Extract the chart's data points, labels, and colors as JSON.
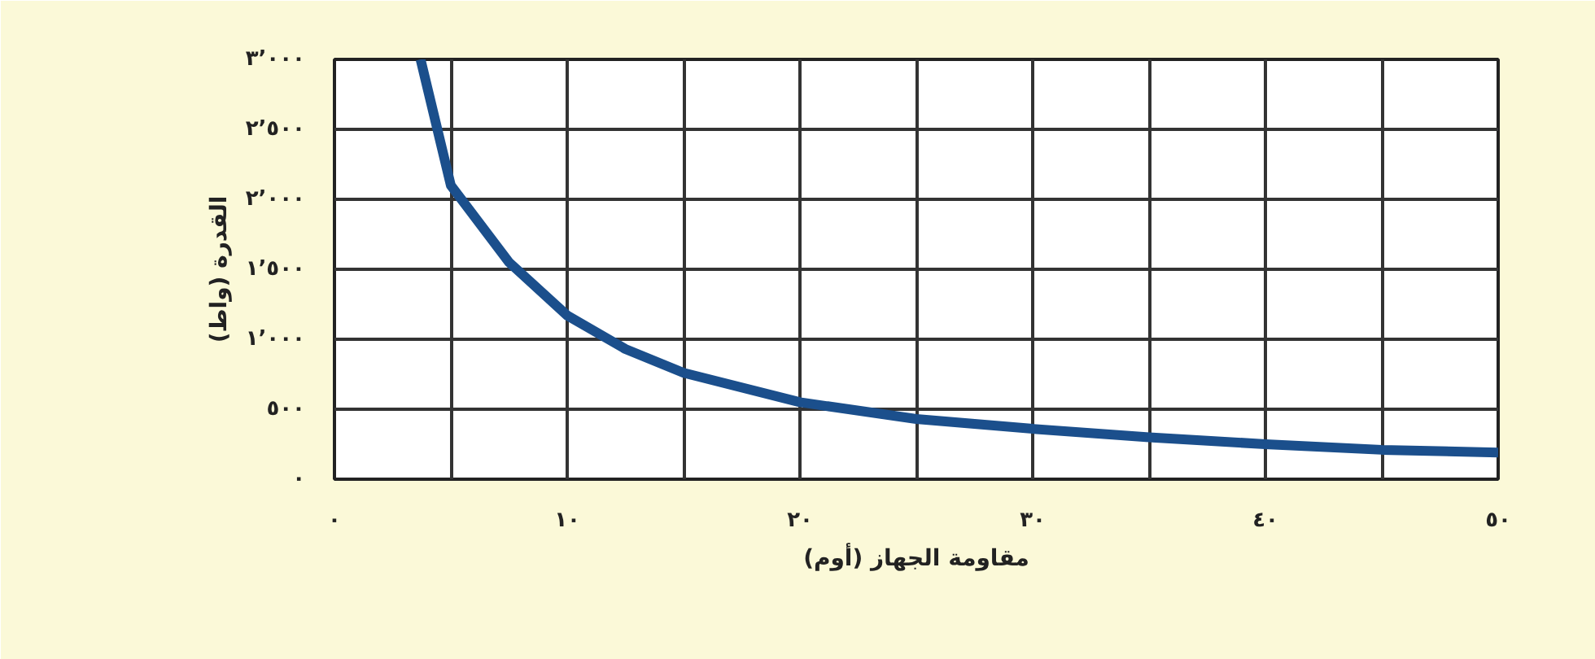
{
  "chart_data": {
    "type": "line",
    "xlabel": "مقاومة الجهاز (أوم)",
    "ylabel": "القدرة (واط)",
    "x": [
      3.7,
      5,
      7.5,
      10,
      12.5,
      15,
      20,
      25,
      30,
      35,
      40,
      45,
      50
    ],
    "series": [
      {
        "color": "#1b4f8c",
        "values": [
          3000,
          2100,
          1550,
          1170,
          930,
          760,
          550,
          430,
          360,
          300,
          250,
          210,
          190
        ]
      }
    ],
    "xlim": [
      0,
      50
    ],
    "ylim": [
      0,
      3000
    ],
    "xticks": [
      {
        "value": 0,
        "label": "٠"
      },
      {
        "value": 5,
        "label": null
      },
      {
        "value": 10,
        "label": "١٠"
      },
      {
        "value": 15,
        "label": null
      },
      {
        "value": 20,
        "label": "٢٠"
      },
      {
        "value": 25,
        "label": null
      },
      {
        "value": 30,
        "label": "٣٠"
      },
      {
        "value": 35,
        "label": null
      },
      {
        "value": 40,
        "label": "٤٠"
      },
      {
        "value": 45,
        "label": null
      },
      {
        "value": 50,
        "label": "٥٠"
      }
    ],
    "yticks": [
      {
        "value": 0,
        "label": "٠"
      },
      {
        "value": 500,
        "label": "٥٠٠"
      },
      {
        "value": 1000,
        "label": "١٬٠٠٠"
      },
      {
        "value": 1500,
        "label": "١٬٥٠٠"
      },
      {
        "value": 2000,
        "label": "٢٬٠٠٠"
      },
      {
        "value": 2500,
        "label": "٢٬٥٠٠"
      },
      {
        "value": 3000,
        "label": "٣٬٠٠٠"
      }
    ],
    "grid": true,
    "line_style": "solid"
  }
}
